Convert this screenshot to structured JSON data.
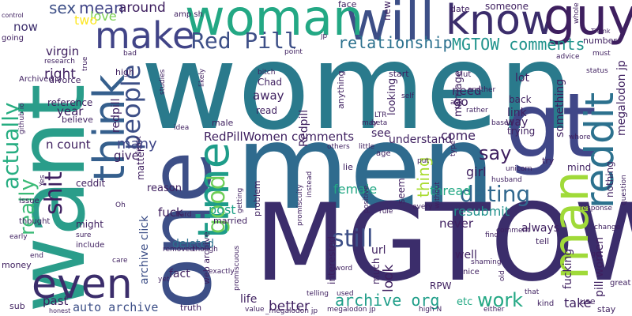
{
  "words": [
    {
      "text": "women",
      "color": "#2a7a8c",
      "vertical": false
    },
    {
      "text": "men",
      "color": "#2f6b8e",
      "vertical": false
    },
    {
      "text": "MGTOW",
      "color": "#3b2d6b",
      "vertical": false
    },
    {
      "text": "want",
      "color": "#2a9d8a",
      "vertical": true
    },
    {
      "text": "one",
      "color": "#3d4f87",
      "vertical": true
    },
    {
      "text": "gt",
      "color": "#404788",
      "vertical": false
    },
    {
      "text": "will",
      "color": "#3d4f87",
      "vertical": false
    },
    {
      "text": "woman",
      "color": "#23a884",
      "vertical": false
    },
    {
      "text": "know",
      "color": "#3b2d6b",
      "vertical": false
    },
    {
      "text": "guy",
      "color": "#3e1f5f",
      "vertical": false
    },
    {
      "text": "make",
      "color": "#414487",
      "vertical": false
    },
    {
      "text": "think",
      "color": "#355f8d",
      "vertical": true
    },
    {
      "text": "time",
      "color": "#1e9c89",
      "vertical": true
    },
    {
      "text": "man",
      "color": "#a0da39",
      "vertical": true
    },
    {
      "text": "reddit",
      "color": "#2c718e",
      "vertical": true
    },
    {
      "text": "even",
      "color": "#3b2d6b",
      "vertical": false
    },
    {
      "text": "people",
      "color": "#3d4f87",
      "vertical": true
    },
    {
      "text": "Red Pill",
      "color": "#3d4f87",
      "vertical": false
    },
    {
      "text": "good",
      "color": "#6ece58",
      "vertical": true
    },
    {
      "text": "really",
      "color": "#3aba76",
      "vertical": true
    },
    {
      "text": "actually",
      "color": "#26ad81",
      "vertical": true
    },
    {
      "text": "shit",
      "color": "#3e1f5f",
      "vertical": true
    },
    {
      "text": "still",
      "color": "#3d4f87",
      "vertical": false
    },
    {
      "text": "dating",
      "color": "#31688e",
      "vertical": false
    },
    {
      "text": "MGTOW comments",
      "color": "#20938c",
      "vertical": false
    },
    {
      "text": "relationship",
      "color": "#2c718e",
      "vertical": false
    },
    {
      "text": "archive org",
      "color": "#1f9e89",
      "vertical": false
    },
    {
      "text": "work",
      "color": "#23a884",
      "vertical": false
    },
    {
      "text": "say",
      "color": "#3e1f5f",
      "vertical": false
    },
    {
      "text": "sex",
      "color": "#3d4f87",
      "vertical": false
    },
    {
      "text": "mean",
      "color": "#414487",
      "vertical": false
    },
    {
      "text": "around",
      "color": "#3e1f5f",
      "vertical": false
    },
    {
      "text": "love",
      "color": "#7ad151",
      "vertical": false
    },
    {
      "text": "two",
      "color": "#fde725",
      "vertical": false
    },
    {
      "text": "now",
      "color": "#3b2d6b",
      "vertical": false
    },
    {
      "text": "virgin",
      "color": "#3e1f5f",
      "vertical": false
    },
    {
      "text": "right",
      "color": "#3e1f5f",
      "vertical": false
    },
    {
      "text": "year",
      "color": "#3e1f5f",
      "vertical": false
    },
    {
      "text": "many",
      "color": "#404788",
      "vertical": false
    },
    {
      "text": "give",
      "color": "#3e1f5f",
      "vertical": false
    },
    {
      "text": "n count",
      "color": "#3e1f5f",
      "vertical": false
    },
    {
      "text": "redpill",
      "color": "#3e1f5f",
      "vertical": true
    },
    {
      "text": "RedPillWomen comments",
      "color": "#3e1f5f",
      "vertical": false
    },
    {
      "text": "come",
      "color": "#3e1f5f",
      "vertical": false
    },
    {
      "text": "thing",
      "color": "#aadc32",
      "vertical": true
    },
    {
      "text": "female",
      "color": "#23a884",
      "vertical": false
    },
    {
      "text": "fuck",
      "color": "#3e1f5f",
      "vertical": false
    },
    {
      "text": "post",
      "color": "#1fa188",
      "vertical": false
    },
    {
      "text": "girl",
      "color": "#3e1f5f",
      "vertical": false
    },
    {
      "text": "thread",
      "color": "#23a884",
      "vertical": false
    },
    {
      "text": "resubmit",
      "color": "#21918c",
      "vertical": false
    },
    {
      "text": "never",
      "color": "#3e1f5f",
      "vertical": false
    },
    {
      "text": "better",
      "color": "#3e1f5f",
      "vertical": false
    },
    {
      "text": "take",
      "color": "#3e1f5f",
      "vertical": false
    },
    {
      "text": "auto archive",
      "color": "#3d4f87",
      "vertical": false
    },
    {
      "text": "past",
      "color": "#3e1f5f",
      "vertical": false
    },
    {
      "text": "archive click",
      "color": "#3d4f87",
      "vertical": true
    },
    {
      "text": "fact",
      "color": "#3e1f5f",
      "vertical": false
    },
    {
      "text": "deleted",
      "color": "#2c718e",
      "vertical": false
    },
    {
      "text": "life",
      "color": "#3e1f5f",
      "vertical": false
    },
    {
      "text": "look",
      "color": "#3e1f5f",
      "vertical": true
    },
    {
      "text": "url",
      "color": "#3e1f5f",
      "vertical": false
    },
    {
      "text": "well",
      "color": "#3e1f5f",
      "vertical": false
    },
    {
      "text": "etc",
      "color": "#23a884",
      "vertical": false
    },
    {
      "text": "always",
      "color": "#3e1f5f",
      "vertical": false
    },
    {
      "text": "tell",
      "color": "#3e1f5f",
      "vertical": false
    },
    {
      "text": "fucking",
      "color": "#3e1f5f",
      "vertical": true
    },
    {
      "text": "pill women",
      "color": "#3e1f5f",
      "vertical": true
    },
    {
      "text": "megalodon jp",
      "color": "#3e1f5f",
      "vertical": true
    },
    {
      "text": "something",
      "color": "#3e1f5f",
      "vertical": true
    },
    {
      "text": "link",
      "color": "#3e1f5f",
      "vertical": false
    },
    {
      "text": "way",
      "color": "#3e1f5f",
      "vertical": false
    },
    {
      "text": "lot",
      "color": "#3e1f5f",
      "vertical": false
    },
    {
      "text": "need",
      "color": "#3e1f5f",
      "vertical": false
    },
    {
      "text": "go",
      "color": "#3e1f5f",
      "vertical": false
    },
    {
      "text": "see",
      "color": "#3e1f5f",
      "vertical": false
    },
    {
      "text": "understand",
      "color": "#3e1f5f",
      "vertical": false
    },
    {
      "text": "Redpill",
      "color": "#3e1f5f",
      "vertical": true
    },
    {
      "text": "away",
      "color": "#3e1f5f",
      "vertical": false
    },
    {
      "text": "read",
      "color": "#3e1f5f",
      "vertical": false
    },
    {
      "text": "looking",
      "color": "#3e1f5f",
      "vertical": true
    },
    {
      "text": "marriage",
      "color": "#3e1f5f",
      "vertical": true
    },
    {
      "text": "start",
      "color": "#3e1f5f",
      "vertical": false
    },
    {
      "text": "new",
      "color": "#3e1f5f",
      "vertical": true
    },
    {
      "text": "face",
      "color": "#3e1f5f",
      "vertical": false
    },
    {
      "text": "date",
      "color": "#3e1f5f",
      "vertical": false
    },
    {
      "text": "someone",
      "color": "#3e1f5f",
      "vertical": false
    },
    {
      "text": "number",
      "color": "#3e1f5f",
      "vertical": false
    },
    {
      "text": "reference",
      "color": "#3e1f5f",
      "vertical": false
    },
    {
      "text": "believe",
      "color": "#3e1f5f",
      "vertical": false
    },
    {
      "text": "high",
      "color": "#3e1f5f",
      "vertical": false
    },
    {
      "text": "divorce",
      "color": "#3e1f5f",
      "vertical": false
    },
    {
      "text": "Archived",
      "color": "#3e1f5f",
      "vertical": false
    },
    {
      "text": "going",
      "color": "#3e1f5f",
      "vertical": false
    },
    {
      "text": "control",
      "color": "#3e1f5f",
      "vertical": false
    },
    {
      "text": "amp sh",
      "color": "#3e1f5f",
      "vertical": false
    },
    {
      "text": "ceddit",
      "color": "#3e1f5f",
      "vertical": false
    },
    {
      "text": "issue",
      "color": "#3e1f5f",
      "vertical": false
    },
    {
      "text": "thought",
      "color": "#3e1f5f",
      "vertical": false
    },
    {
      "text": "money",
      "color": "#3e1f5f",
      "vertical": false
    },
    {
      "text": "sub",
      "color": "#3e1f5f",
      "vertical": false
    },
    {
      "text": "honest",
      "color": "#3e1f5f",
      "vertical": false
    },
    {
      "text": "might",
      "color": "#3e1f5f",
      "vertical": false
    },
    {
      "text": "include",
      "color": "#3e1f5f",
      "vertical": false
    },
    {
      "text": "reason",
      "color": "#3e1f5f",
      "vertical": false
    },
    {
      "text": "matter",
      "color": "#3e1f5f",
      "vertical": true
    },
    {
      "text": "male",
      "color": "#3e1f5f",
      "vertical": false
    },
    {
      "text": "married",
      "color": "#3e1f5f",
      "vertical": false
    },
    {
      "text": "problem",
      "color": "#3e1f5f",
      "vertical": true
    },
    {
      "text": "interested",
      "color": "#3e1f5f",
      "vertical": true
    },
    {
      "text": "much",
      "color": "#3e1f5f",
      "vertical": true
    },
    {
      "text": "web archive",
      "color": "#3e1f5f",
      "vertical": true
    },
    {
      "text": "truth",
      "color": "#3e1f5f",
      "vertical": false
    },
    {
      "text": "RPW",
      "color": "#3e1f5f",
      "vertical": false
    },
    {
      "text": "nice",
      "color": "#3e1f5f",
      "vertical": false
    },
    {
      "text": "stay",
      "color": "#3e1f5f",
      "vertical": false
    },
    {
      "text": "use",
      "color": "#3e1f5f",
      "vertical": false
    },
    {
      "text": "great",
      "color": "#3e1f5f",
      "vertical": false
    },
    {
      "text": "kind",
      "color": "#3e1f5f",
      "vertical": false
    },
    {
      "text": "change",
      "color": "#3e1f5f",
      "vertical": false
    },
    {
      "text": "response",
      "color": "#3e1f5f",
      "vertical": false
    },
    {
      "text": "whore",
      "color": "#3e1f5f",
      "vertical": false
    },
    {
      "text": "mind",
      "color": "#3e1f5f",
      "vertical": false
    },
    {
      "text": "nothing",
      "color": "#3e1f5f",
      "vertical": true
    },
    {
      "text": "try",
      "color": "#3e1f5f",
      "vertical": false
    },
    {
      "text": "trying",
      "color": "#3e1f5f",
      "vertical": false
    },
    {
      "text": "back",
      "color": "#3e1f5f",
      "vertical": false
    },
    {
      "text": "status",
      "color": "#3e1f5f",
      "vertical": false
    },
    {
      "text": "advice",
      "color": "#3e1f5f",
      "vertical": false
    },
    {
      "text": "must",
      "color": "#3e1f5f",
      "vertical": false
    },
    {
      "text": "slut",
      "color": "#3e1f5f",
      "vertical": false
    },
    {
      "text": "ask",
      "color": "#3e1f5f",
      "vertical": false
    },
    {
      "text": "rather",
      "color": "#3e1f5f",
      "vertical": false
    },
    {
      "text": "self",
      "color": "#3e1f5f",
      "vertical": false
    },
    {
      "text": "LTR",
      "color": "#3e1f5f",
      "vertical": false
    },
    {
      "text": "anything",
      "color": "#3e1f5f",
      "vertical": true
    },
    {
      "text": "Chad",
      "color": "#3e1f5f",
      "vertical": false
    },
    {
      "text": "bitch",
      "color": "#3e1f5f",
      "vertical": false
    },
    {
      "text": "point",
      "color": "#3e1f5f",
      "vertical": false
    },
    {
      "text": "age",
      "color": "#3e1f5f",
      "vertical": false
    },
    {
      "text": "put",
      "color": "#3e1f5f",
      "vertical": false
    },
    {
      "text": "lie",
      "color": "#3e1f5f",
      "vertical": false
    },
    {
      "text": "seem",
      "color": "#3e1f5f",
      "vertical": true
    },
    {
      "text": "every",
      "color": "#3e1f5f",
      "vertical": false
    },
    {
      "text": "comment",
      "color": "#3e1f5f",
      "vertical": false
    },
    {
      "text": "find",
      "color": "#3e1f5f",
      "vertical": false
    },
    {
      "text": "shaming",
      "color": "#3e1f5f",
      "vertical": false
    },
    {
      "text": "word",
      "color": "#3e1f5f",
      "vertical": false
    },
    {
      "text": "either",
      "color": "#3e1f5f",
      "vertical": false
    },
    {
      "text": "high N",
      "color": "#3e1f5f",
      "vertical": false
    },
    {
      "text": "megalodon jp",
      "color": "#3e1f5f",
      "vertical": false
    },
    {
      "text": "value",
      "color": "#3e1f5f",
      "vertical": false
    },
    {
      "text": "telling",
      "color": "#3e1f5f",
      "vertical": false
    },
    {
      "text": "used",
      "color": "#3e1f5f",
      "vertical": false
    },
    {
      "text": "exactly",
      "color": "#3e1f5f",
      "vertical": false
    },
    {
      "text": "though",
      "color": "#3e1f5f",
      "vertical": false
    },
    {
      "text": "removed",
      "color": "#3e1f5f",
      "vertical": false
    },
    {
      "text": "promiscuous",
      "color": "#3e1f5f",
      "vertical": true
    },
    {
      "text": "promiscuity",
      "color": "#3e1f5f",
      "vertical": true
    },
    {
      "text": "getting",
      "color": "#3e1f5f",
      "vertical": true
    },
    {
      "text": "hard",
      "color": "#3e1f5f",
      "vertical": false
    },
    {
      "text": "idea",
      "color": "#3e1f5f",
      "vertical": false
    },
    {
      "text": "least",
      "color": "#3e1f5f",
      "vertical": true
    },
    {
      "text": "likely",
      "color": "#3e1f5f",
      "vertical": true
    },
    {
      "text": "studies",
      "color": "#3e1f5f",
      "vertical": true
    },
    {
      "text": "research",
      "color": "#3e1f5f",
      "vertical": false
    },
    {
      "text": "bad",
      "color": "#3e1f5f",
      "vertical": false
    },
    {
      "text": "true",
      "color": "#3e1f5f",
      "vertical": true
    },
    {
      "text": "github io",
      "color": "#3e1f5f",
      "vertical": true
    },
    {
      "text": "Yes",
      "color": "#3e1f5f",
      "vertical": true
    },
    {
      "text": "Oh",
      "color": "#3e1f5f",
      "vertical": false
    },
    {
      "text": "sure",
      "color": "#3e1f5f",
      "vertical": false
    },
    {
      "text": "care",
      "color": "#3e1f5f",
      "vertical": false
    },
    {
      "text": "yet",
      "color": "#3e1f5f",
      "vertical": false
    },
    {
      "text": "early",
      "color": "#3e1f5f",
      "vertical": false
    },
    {
      "text": "end",
      "color": "#3e1f5f",
      "vertical": false
    },
    {
      "text": "jp",
      "color": "#3e1f5f",
      "vertical": false
    },
    {
      "text": "whole",
      "color": "#3e1f5f",
      "vertical": true
    },
    {
      "text": "Thank",
      "color": "#3e1f5f",
      "vertical": false
    },
    {
      "text": "based",
      "color": "#3e1f5f",
      "vertical": false
    },
    {
      "text": "others",
      "color": "#3e1f5f",
      "vertical": false
    },
    {
      "text": "may",
      "color": "#3e1f5f",
      "vertical": false
    },
    {
      "text": "beta",
      "color": "#3e1f5f",
      "vertical": false
    },
    {
      "text": "another",
      "color": "#3e1f5f",
      "vertical": false
    },
    {
      "text": "husband",
      "color": "#3e1f5f",
      "vertical": false
    },
    {
      "text": "unicorn",
      "color": "#3e1f5f",
      "vertical": false
    },
    {
      "text": "type",
      "color": "#3e1f5f",
      "vertical": true
    },
    {
      "text": "without",
      "color": "#3e1f5f",
      "vertical": true
    },
    {
      "text": "positive",
      "color": "#3e1f5f",
      "vertical": true
    },
    {
      "text": "little",
      "color": "#3e1f5f",
      "vertical": false
    },
    {
      "text": "instead",
      "color": "#3e1f5f",
      "vertical": true
    },
    {
      "text": "rule",
      "color": "#3e1f5f",
      "vertical": false
    },
    {
      "text": "got",
      "color": "#3e1f5f",
      "vertical": false
    },
    {
      "text": "old",
      "color": "#3e1f5f",
      "vertical": true
    },
    {
      "text": "that",
      "color": "#3e1f5f",
      "vertical": false
    },
    {
      "text": "question",
      "color": "#3e1f5f",
      "vertical": true
    },
    {
      "text": "_megalodon jp",
      "color": "#3e1f5f",
      "vertical": false
    }
  ]
}
